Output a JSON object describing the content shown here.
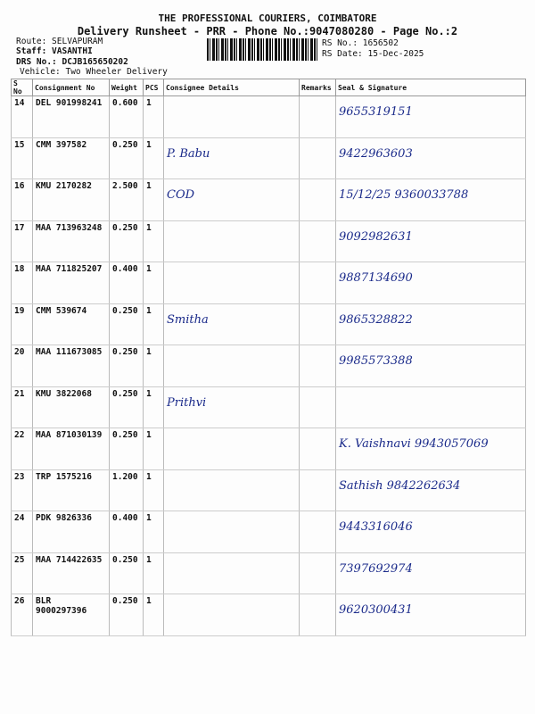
{
  "header": {
    "company": "THE PROFESSIONAL COURIERS, COIMBATORE",
    "subtitle": "Delivery Runsheet - PRR - Phone No.:9047080280 - Page No.:2",
    "route": "Route: SELVAPURAM",
    "staff": "Staff: VASANTHI",
    "drs": "DRS No.: DCJB165650202",
    "vehicle": "Vehicle: Two Wheeler Delivery",
    "rs_no": "RS No.: 1656502",
    "rs_date": "RS Date: 15-Dec-2025"
  },
  "columns": [
    "S No",
    "Consignment No",
    "Weight",
    "PCS",
    "Consignee Details",
    "Remarks",
    "Seal & Signature"
  ],
  "rows": [
    {
      "sno": "14",
      "cn": "DEL 901998241",
      "wt": "0.600",
      "pcs": "1",
      "consignee": "",
      "seal": "9655319151"
    },
    {
      "sno": "15",
      "cn": "CMM 397582",
      "wt": "0.250",
      "pcs": "1",
      "consignee": "P. Babu",
      "seal": "9422963603"
    },
    {
      "sno": "16",
      "cn": "KMU 2170282",
      "wt": "2.500",
      "pcs": "1",
      "consignee": "COD",
      "seal": "15/12/25 9360033788"
    },
    {
      "sno": "17",
      "cn": "MAA 713963248",
      "wt": "0.250",
      "pcs": "1",
      "consignee": "",
      "seal": "9092982631"
    },
    {
      "sno": "18",
      "cn": "MAA 711825207",
      "wt": "0.400",
      "pcs": "1",
      "consignee": "",
      "seal": "9887134690"
    },
    {
      "sno": "19",
      "cn": "CMM 539674",
      "wt": "0.250",
      "pcs": "1",
      "consignee": "Smitha",
      "seal": "9865328822"
    },
    {
      "sno": "20",
      "cn": "MAA 111673085",
      "wt": "0.250",
      "pcs": "1",
      "consignee": "",
      "seal": "9985573388"
    },
    {
      "sno": "21",
      "cn": "KMU 3822068",
      "wt": "0.250",
      "pcs": "1",
      "consignee": "Prithvi",
      "seal": ""
    },
    {
      "sno": "22",
      "cn": "MAA 871030139",
      "wt": "0.250",
      "pcs": "1",
      "consignee": "",
      "seal": "K. Vaishnavi 9943057069"
    },
    {
      "sno": "23",
      "cn": "TRP 1575216",
      "wt": "1.200",
      "pcs": "1",
      "consignee": "",
      "seal": "Sathish 9842262634"
    },
    {
      "sno": "24",
      "cn": "PDK 9826336",
      "wt": "0.400",
      "pcs": "1",
      "consignee": "",
      "seal": "9443316046"
    },
    {
      "sno": "25",
      "cn": "MAA 714422635",
      "wt": "0.250",
      "pcs": "1",
      "consignee": "",
      "seal": "7397692974"
    },
    {
      "sno": "26",
      "cn": "BLR 9000297396",
      "wt": "0.250",
      "pcs": "1",
      "consignee": "",
      "seal": "9620300431"
    }
  ]
}
